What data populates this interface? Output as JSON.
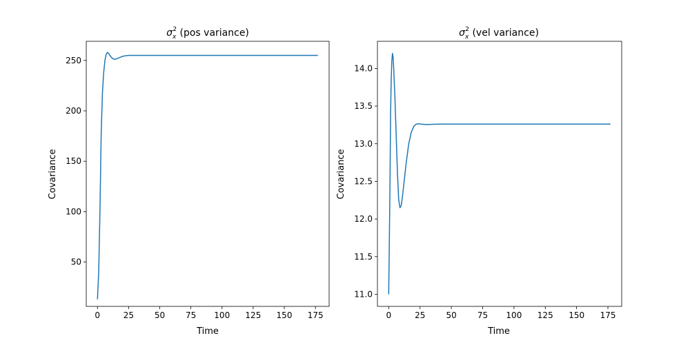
{
  "chart_data": [
    {
      "type": "line",
      "title": {
        "symbol": "σ",
        "sub": "x",
        "sup": "2",
        "text": " (pos variance)"
      },
      "xlabel": "Time",
      "ylabel": "Covariance",
      "xlim": [
        -9,
        186
      ],
      "ylim": [
        6,
        269
      ],
      "xticks": [
        0,
        25,
        50,
        75,
        100,
        125,
        150,
        175
      ],
      "xtick_labels": [
        "0",
        "25",
        "50",
        "75",
        "100",
        "125",
        "150",
        "175"
      ],
      "yticks": [
        50,
        100,
        150,
        200,
        250
      ],
      "ytick_labels": [
        "50",
        "100",
        "150",
        "200",
        "250"
      ],
      "grid": false,
      "series": [
        {
          "color": "#1f77b4",
          "x": [
            0,
            1,
            2,
            3,
            4,
            5,
            6,
            7,
            8,
            9,
            10,
            12,
            14,
            16,
            18,
            20,
            22,
            25,
            30,
            40,
            60,
            100,
            177
          ],
          "y": [
            13,
            40,
            100,
            178,
            218,
            238,
            250,
            256,
            258,
            257,
            255,
            252,
            251,
            252,
            253,
            254,
            254.6,
            255,
            255,
            255,
            255,
            255,
            255
          ]
        }
      ]
    },
    {
      "type": "line",
      "title": {
        "symbol": "σ",
        "sub": "x",
        "sup": "2",
        "text": " (vel variance)"
      },
      "xlabel": "Time",
      "ylabel": "Covariance",
      "xlim": [
        -9,
        186
      ],
      "ylim": [
        10.84,
        14.36
      ],
      "xticks": [
        0,
        25,
        50,
        75,
        100,
        125,
        150,
        175
      ],
      "xtick_labels": [
        "0",
        "25",
        "50",
        "75",
        "100",
        "125",
        "150",
        "175"
      ],
      "yticks": [
        11.0,
        11.5,
        12.0,
        12.5,
        13.0,
        13.5,
        14.0
      ],
      "ytick_labels": [
        "11.0",
        "11.5",
        "12.0",
        "12.5",
        "13.0",
        "13.5",
        "14.0"
      ],
      "grid": false,
      "series": [
        {
          "color": "#1f77b4",
          "x": [
            0,
            1,
            1.5,
            2,
            2.5,
            3,
            3.5,
            4,
            5,
            6,
            7,
            8,
            9,
            10,
            11,
            12,
            14,
            16,
            18,
            20,
            22,
            24,
            26,
            30,
            40,
            60,
            100,
            177
          ],
          "y": [
            11.0,
            12.4,
            13.4,
            13.85,
            14.1,
            14.2,
            14.15,
            14.0,
            13.6,
            13.1,
            12.6,
            12.25,
            12.15,
            12.18,
            12.3,
            12.45,
            12.75,
            13.0,
            13.15,
            13.23,
            13.26,
            13.265,
            13.26,
            13.255,
            13.26,
            13.26,
            13.26,
            13.26
          ]
        }
      ]
    }
  ]
}
